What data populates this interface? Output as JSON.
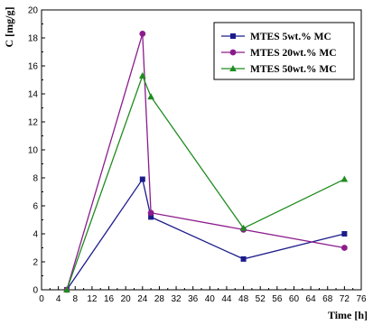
{
  "chart_data": {
    "type": "line",
    "xlabel": "Time [h]",
    "ylabel": "C [mg/g]",
    "xlim": [
      0,
      76
    ],
    "ylim": [
      0,
      20
    ],
    "xticks": [
      0,
      4,
      8,
      12,
      16,
      20,
      24,
      28,
      32,
      36,
      40,
      44,
      48,
      52,
      56,
      60,
      64,
      68,
      72,
      76
    ],
    "yticks": [
      0,
      2,
      4,
      6,
      8,
      10,
      12,
      14,
      16,
      18,
      20
    ],
    "grid": false,
    "legend_position": "top-right",
    "series": [
      {
        "name": "MTES 5wt.% MC",
        "color": "#1c1c8c",
        "marker": "square",
        "x": [
          6,
          24,
          26,
          48,
          72
        ],
        "y": [
          0,
          7.9,
          5.2,
          2.2,
          4.0
        ]
      },
      {
        "name": "MTES 20wt.% MC",
        "color": "#8c1c8c",
        "marker": "circle",
        "x": [
          6,
          24,
          26,
          48,
          72
        ],
        "y": [
          0,
          18.3,
          5.5,
          4.3,
          3.0
        ]
      },
      {
        "name": "MTES 50wt.% MC",
        "color": "#1f8c1f",
        "marker": "triangle",
        "x": [
          6,
          24,
          26,
          48,
          72
        ],
        "y": [
          0,
          15.3,
          13.8,
          4.4,
          7.9
        ]
      }
    ]
  }
}
